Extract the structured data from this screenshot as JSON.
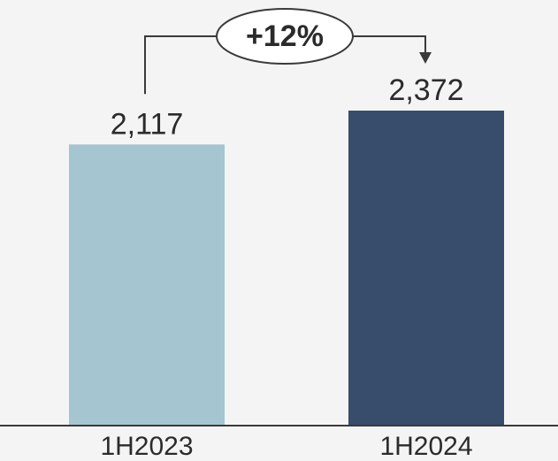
{
  "chart_data": {
    "type": "bar",
    "categories": [
      "1H2023",
      "1H2024"
    ],
    "values": [
      2117,
      2372
    ],
    "value_labels": [
      "2,117",
      "2,372"
    ],
    "colors": [
      "#a5c5d1",
      "#384c6b"
    ],
    "ylim": [
      0,
      2372
    ],
    "grid": false,
    "annotation": {
      "text": "+12%",
      "from": "1H2023",
      "to": "1H2024"
    }
  },
  "colors": {
    "background": "#f4f4f5",
    "axis": "#3a3a3a",
    "connector": "#3a3a3a",
    "text": "#2b2b2b"
  }
}
